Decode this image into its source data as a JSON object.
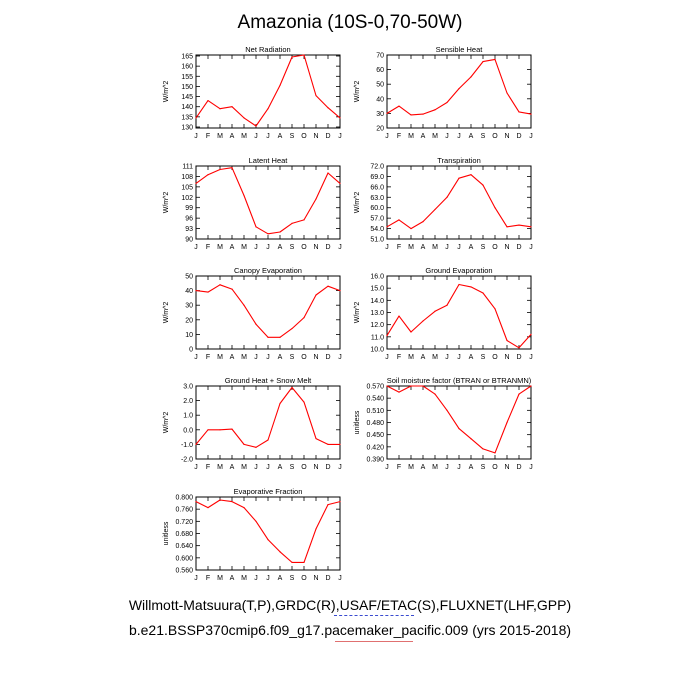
{
  "title": "Amazonia (10S-0,70-50W)",
  "footer": {
    "line1": "Willmott-Matsuura(T,P),GRDC(R),USAF/ETAC(S),FLUXNET(LHF,GPP)",
    "line2": "b.e21.BSSP370cmip6.f09_g17.pacemaker_pacific.009 (yrs 2015-2018)"
  },
  "colors": {
    "series": "#ff0000",
    "axis": "#000000"
  },
  "chart_data": [
    {
      "type": "line",
      "title": "Net Radiation",
      "ylabel": "W/m^2",
      "categories": [
        "J",
        "F",
        "M",
        "A",
        "M",
        "J",
        "J",
        "A",
        "S",
        "O",
        "N",
        "D",
        "J"
      ],
      "yticks": [
        "165",
        "160",
        "155",
        "150",
        "145",
        "140",
        "135",
        "130"
      ],
      "ylim": [
        129.5,
        165.5
      ],
      "values": [
        134.5,
        143,
        139,
        140,
        134.5,
        130.5,
        139,
        150.5,
        164.5,
        165.5,
        145.5,
        139.5,
        134.5
      ]
    },
    {
      "type": "line",
      "title": "Sensible Heat",
      "ylabel": "W/m^2",
      "categories": [
        "J",
        "F",
        "M",
        "A",
        "M",
        "J",
        "J",
        "A",
        "S",
        "O",
        "N",
        "D",
        "J"
      ],
      "yticks": [
        "70",
        "60",
        "50",
        "40",
        "30",
        "20"
      ],
      "ylim": [
        20,
        70
      ],
      "values": [
        30,
        35,
        29,
        29.5,
        32.5,
        37.5,
        47,
        55,
        65.5,
        67,
        44,
        31,
        29.5
      ]
    },
    {
      "type": "line",
      "title": "Latent Heat",
      "ylabel": "W/m^2",
      "categories": [
        "J",
        "F",
        "M",
        "A",
        "M",
        "J",
        "J",
        "A",
        "S",
        "O",
        "N",
        "D",
        "J"
      ],
      "yticks": [
        "111",
        "108",
        "105",
        "102",
        "99",
        "96",
        "93",
        "90"
      ],
      "ylim": [
        90,
        111
      ],
      "values": [
        106,
        108.5,
        110,
        110.5,
        102.5,
        93.5,
        91.5,
        92,
        94.5,
        95.5,
        101.5,
        109,
        106
      ]
    },
    {
      "type": "line",
      "title": "Transpiration",
      "ylabel": "W/m^2",
      "categories": [
        "J",
        "F",
        "M",
        "A",
        "M",
        "J",
        "J",
        "A",
        "S",
        "O",
        "N",
        "D",
        "J"
      ],
      "yticks": [
        "72.0",
        "69.0",
        "66.0",
        "63.0",
        "60.0",
        "57.0",
        "54.0",
        "51.0"
      ],
      "ylim": [
        51,
        72
      ],
      "values": [
        54.5,
        56.5,
        54,
        56,
        59.5,
        63,
        68.5,
        69.5,
        66.5,
        60,
        54.5,
        55,
        54.5
      ]
    },
    {
      "type": "line",
      "title": "Canopy Evaporation",
      "ylabel": "W/m^2",
      "categories": [
        "J",
        "F",
        "M",
        "A",
        "M",
        "J",
        "J",
        "A",
        "S",
        "O",
        "N",
        "D",
        "J"
      ],
      "yticks": [
        "50",
        "40",
        "30",
        "20",
        "10",
        "0"
      ],
      "ylim": [
        0,
        50
      ],
      "values": [
        40,
        39,
        44,
        41,
        30,
        17,
        8,
        8,
        14,
        21.5,
        37,
        43,
        40
      ]
    },
    {
      "type": "line",
      "title": "Ground Evaporation",
      "ylabel": "W/m^2",
      "categories": [
        "J",
        "F",
        "M",
        "A",
        "M",
        "J",
        "J",
        "A",
        "S",
        "O",
        "N",
        "D",
        "J"
      ],
      "yticks": [
        "16.0",
        "15.0",
        "14.0",
        "13.0",
        "12.0",
        "11.0",
        "10.0"
      ],
      "ylim": [
        10,
        16
      ],
      "values": [
        11.1,
        12.7,
        11.4,
        12.3,
        13.1,
        13.6,
        15.3,
        15.1,
        14.6,
        13.3,
        10.7,
        10.1,
        11.2
      ]
    },
    {
      "type": "line",
      "title": "Ground Heat + Snow Melt",
      "ylabel": "W/m^2",
      "categories": [
        "J",
        "F",
        "M",
        "A",
        "M",
        "J",
        "J",
        "A",
        "S",
        "O",
        "N",
        "D",
        "J"
      ],
      "yticks": [
        "3.0",
        "2.0",
        "1.0",
        "0.0",
        "-1.0",
        "-2.0"
      ],
      "ylim": [
        -2,
        3
      ],
      "values": [
        -1,
        0,
        0,
        0.05,
        -1,
        -1.2,
        -0.7,
        1.8,
        2.9,
        1.9,
        -0.6,
        -1,
        -1
      ]
    },
    {
      "type": "line",
      "title": "Soil moisture factor (BTRAN or BTRANMN)",
      "ylabel": "unitless",
      "categories": [
        "J",
        "F",
        "M",
        "A",
        "M",
        "J",
        "J",
        "A",
        "S",
        "O",
        "N",
        "D",
        "J"
      ],
      "yticks": [
        "0.570",
        "0.540",
        "0.510",
        "0.480",
        "0.450",
        "0.420",
        "0.390"
      ],
      "ylim": [
        0.39,
        0.57
      ],
      "values": [
        0.57,
        0.555,
        0.57,
        0.57,
        0.55,
        0.51,
        0.465,
        0.44,
        0.415,
        0.405,
        0.48,
        0.55,
        0.57
      ]
    },
    {
      "type": "line",
      "title": "Evaporative Fraction",
      "ylabel": "unitless",
      "categories": [
        "J",
        "F",
        "M",
        "A",
        "M",
        "J",
        "J",
        "A",
        "S",
        "O",
        "N",
        "D",
        "J"
      ],
      "yticks": [
        "0.800",
        "0.760",
        "0.720",
        "0.680",
        "0.640",
        "0.600",
        "0.560"
      ],
      "ylim": [
        0.56,
        0.8
      ],
      "values": [
        0.785,
        0.765,
        0.79,
        0.785,
        0.765,
        0.72,
        0.66,
        0.62,
        0.585,
        0.585,
        0.695,
        0.775,
        0.785
      ]
    }
  ]
}
